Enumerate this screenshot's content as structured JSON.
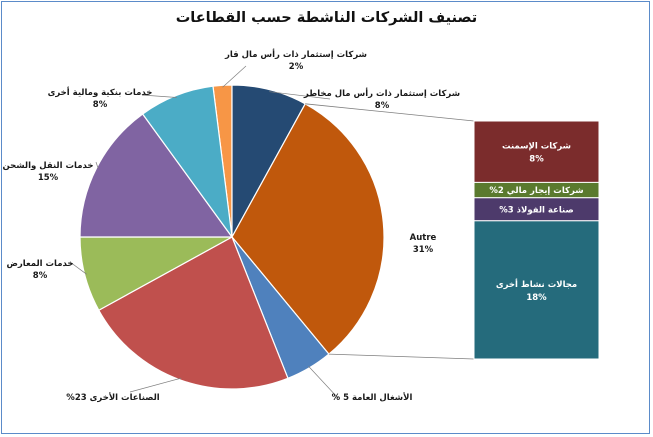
{
  "chart_data": {
    "type": "pie",
    "title": "تصنيف الشركات الناشطة حسب القطاعات",
    "pie": [
      {
        "name": "شركات إستثمار ذات رأس مال قار",
        "value": 2,
        "label_name": "شركات إستثمار ذات رأس مال قار",
        "label_value": "2%",
        "color": "#f79646"
      },
      {
        "name": "شركات إستثمار ذات رأس مال مخاطر",
        "value": 8,
        "label_name": "شركات إستثمار ذات رأس مال مخاطر",
        "label_value": "8%",
        "color": "#254a73"
      },
      {
        "name": "Autre",
        "value": 31,
        "label_name": "Autre",
        "label_value": "31%",
        "color": "#c0580c"
      },
      {
        "name": "الأشغال العامة",
        "value": 5,
        "label_name": "الأشغال العامة",
        "label_value": "5 %",
        "color": "#4f81bd"
      },
      {
        "name": "الصناعات الأخرى",
        "value": 23,
        "label_name": "الصناعات الأخرى",
        "label_value": "23%",
        "color": "#c0504d"
      },
      {
        "name": "خدمات المعارض",
        "value": 8,
        "label_name": "خدمات المعارض",
        "label_value": "8%",
        "color": "#9bbb59"
      },
      {
        "name": "خدمات النقل والشحن",
        "value": 15,
        "label_name": "خدمات النقل والشحن",
        "label_value": "15%",
        "color": "#8064a2"
      },
      {
        "name": "خدمات بنكية ومالية أخرى",
        "value": 8,
        "label_name": "خدمات بنكية ومالية أخرى",
        "label_value": "8%",
        "color": "#4bacc6"
      }
    ],
    "breakdown_of": "Autre",
    "breakdown": [
      {
        "name": "شركات الإسمنت",
        "value": 8,
        "label_name": "شركات الإسمنت",
        "label_value": "8%",
        "color": "#7b2c2c"
      },
      {
        "name": "شركات إيجار مالي",
        "value": 2,
        "label_name": "شركات إيجار مالي",
        "label_value": "2%",
        "color": "#5a7a2e"
      },
      {
        "name": "صناعة الفولاذ",
        "value": 3,
        "label_name": "صناعة الفولاذ",
        "label_value": "3%",
        "color": "#4d3a6b"
      },
      {
        "name": "مجالات نشاط أخرى",
        "value": 18,
        "label_name": "مجالات نشاط أخرى",
        "label_value": "18%",
        "color": "#256b7c"
      }
    ]
  }
}
